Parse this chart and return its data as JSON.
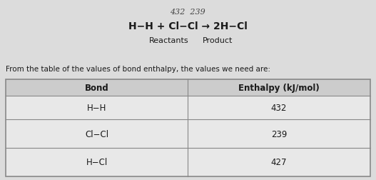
{
  "handwritten_line1": "432  239",
  "equation_line": "H−H + Cl−Cl → 2H−Cl",
  "label_reactants": "Reactants",
  "label_product": "Product",
  "description": "From the table of the values of bond enthalpy, the values we need are:",
  "col_headers": [
    "Bond",
    "Enthalpy (kJ/mol)"
  ],
  "rows": [
    [
      "H−H",
      "432"
    ],
    [
      "Cl−Cl",
      "239"
    ],
    [
      "H−Cl",
      "427"
    ]
  ],
  "bg_color": "#dcdcdc",
  "table_cell_bg": "#e8e8e8",
  "header_bg": "#cccccc",
  "border_color": "#888888",
  "text_color": "#1a1a1a",
  "fig_width": 5.27,
  "fig_height": 2.53,
  "dpi": 100
}
